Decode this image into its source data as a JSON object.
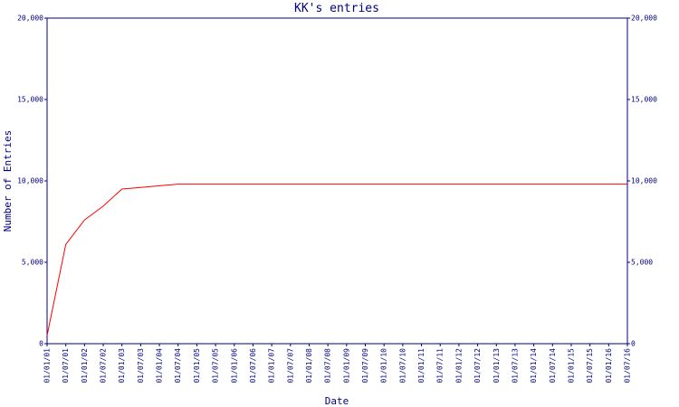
{
  "chart_data": {
    "type": "line",
    "title": "KK's entries",
    "x_label": "Date",
    "y_label": "Number of Entries",
    "categories": [
      "01/01/01",
      "01/07/01",
      "01/01/02",
      "01/07/02",
      "01/01/03",
      "01/07/03",
      "01/01/04",
      "01/07/04",
      "01/01/05",
      "01/07/05",
      "01/01/06",
      "01/07/06",
      "01/01/07",
      "01/07/07",
      "01/01/08",
      "01/07/08",
      "01/01/09",
      "01/07/09",
      "01/01/10",
      "01/07/10",
      "01/01/11",
      "01/07/11",
      "01/01/12",
      "01/07/12",
      "01/01/13",
      "01/07/13",
      "01/01/14",
      "01/07/14",
      "01/01/15",
      "01/07/15",
      "01/01/16",
      "01/07/16"
    ],
    "values": [
      500,
      6100,
      7600,
      8450,
      9500,
      9600,
      9700,
      9800,
      9800,
      9800,
      9800,
      9800,
      9800,
      9800,
      9800,
      9800,
      9800,
      9800,
      9800,
      9800,
      9800,
      9800,
      9800,
      9800,
      9800,
      9800,
      9800,
      9800,
      9800,
      9800,
      9800,
      9800
    ],
    "color": "#ff0000",
    "ylim": [
      0,
      20000
    ],
    "yticks": [
      0,
      {
        "value": 5000,
        "label": "5,000"
      },
      {
        "value": 10000,
        "label": "10,000"
      },
      {
        "value": 15000,
        "label": "15,000"
      },
      {
        "value": 20000,
        "label": "20,000"
      }
    ],
    "y2lim": [
      0,
      20000
    ],
    "y2ticks": [
      0,
      {
        "value": 5000,
        "label": "5,000"
      },
      {
        "value": 10000,
        "label": "10,000"
      },
      {
        "value": 15000,
        "label": "15,000"
      },
      {
        "value": 20000,
        "label": "20,000"
      }
    ]
  }
}
